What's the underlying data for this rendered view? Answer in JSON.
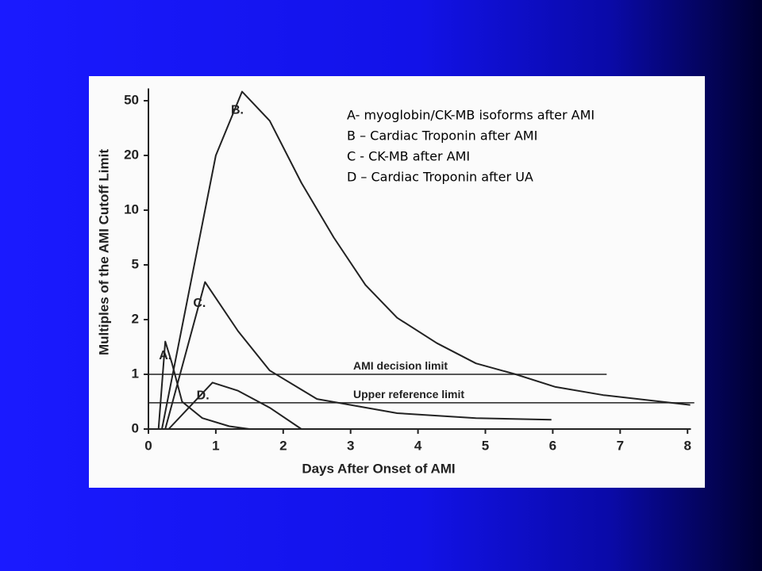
{
  "chart_data": {
    "type": "line",
    "x_label": "Days After Onset of AMI",
    "y_label": "Multiples of the AMI Cutoff Limit",
    "xlim": [
      0,
      8.05
    ],
    "xticks": [
      0,
      1,
      2,
      3,
      4,
      5,
      6,
      7,
      8
    ],
    "ylim": [
      0,
      55
    ],
    "yticks": [
      0,
      1,
      2,
      5,
      10,
      20,
      50
    ],
    "color": "#222222",
    "series": [
      {
        "name": "A.",
        "x": [
          0.15,
          0.25,
          0.35,
          0.5,
          0.8,
          1.2,
          1.5
        ],
        "values": [
          0,
          1.6,
          1.2,
          0.5,
          0.2,
          0.05,
          0
        ]
      },
      {
        "name": "B.",
        "x": [
          0.2,
          1.0,
          1.39,
          1.8,
          2.27,
          2.75,
          3.22,
          3.69,
          4.28,
          4.86,
          5.45,
          6.04,
          6.75,
          8.04
        ],
        "values": [
          0,
          20,
          55,
          39,
          15,
          7.5,
          3.9,
          2.1,
          1.57,
          1.2,
          1.0,
          0.77,
          0.62,
          0.44
        ]
      },
      {
        "name": "C.",
        "x": [
          0.25,
          0.84,
          1.33,
          1.8,
          2.5,
          3.69,
          4.86,
          5.98
        ],
        "values": [
          0,
          4.06,
          1.79,
          1.07,
          0.55,
          0.29,
          0.2,
          0.17
        ]
      },
      {
        "name": "D.",
        "x": [
          0.3,
          0.95,
          1.33,
          1.8,
          2.27
        ],
        "values": [
          0,
          0.85,
          0.7,
          0.39,
          0
        ]
      }
    ],
    "reference_lines": [
      {
        "label": "AMI decision limit",
        "value": 1,
        "x": [
          0,
          6.8
        ]
      },
      {
        "label": "Upper reference limit",
        "value": 0.48,
        "x": [
          0,
          8.1
        ]
      }
    ],
    "legend": [
      "A- myoglobin/CK-MB isoforms after AMI",
      "B – Cardiac Troponin after AMI",
      "C - CK-MB after AMI",
      "D – Cardiac Troponin after UA"
    ]
  }
}
